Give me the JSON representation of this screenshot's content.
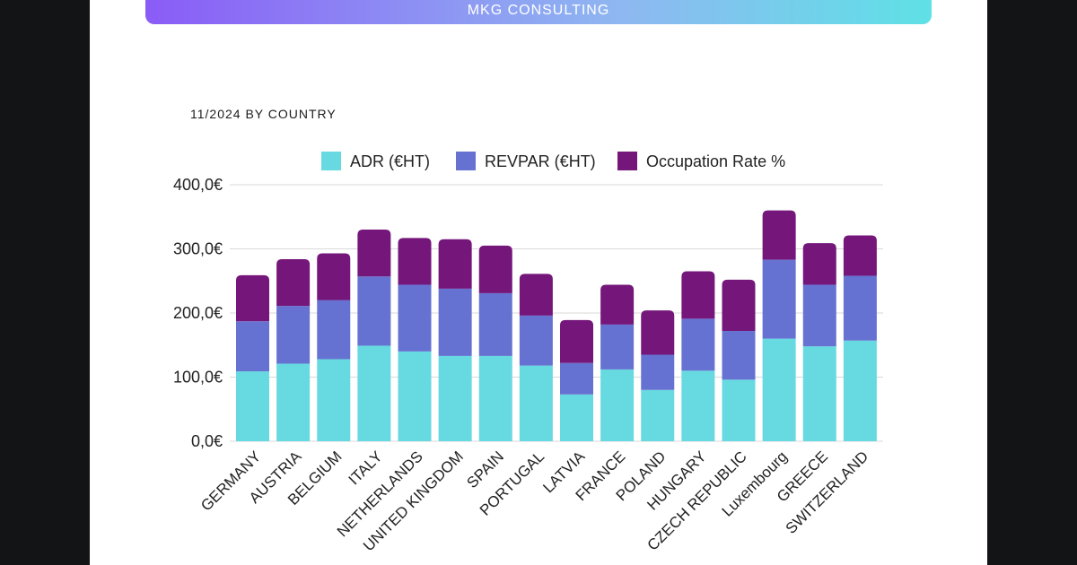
{
  "header": {
    "brand": "MKG CONSULTING"
  },
  "subtitle": "11/2024 BY COUNTRY",
  "colors": {
    "adr": "#67d9e0",
    "revpar": "#6672d1",
    "occupation": "#74167a",
    "grid": "#d9d9d9"
  },
  "chart_data": {
    "type": "bar",
    "stacked": true,
    "categories": [
      "GERMANY",
      "AUSTRIA",
      "BELGIUM",
      "ITALY",
      "NETHERLANDS",
      "UNITED KINGDOM",
      "SPAIN",
      "PORTUGAL",
      "LATVIA",
      "FRANCE",
      "POLAND",
      "HUNGARY",
      "CZECH REPUBLIC",
      "Luxembourg",
      "GREECE",
      "SWITZERLAND"
    ],
    "series": [
      {
        "name": "ADR (€HT)",
        "values": [
          109,
          121,
          128,
          149,
          140,
          133,
          133,
          118,
          73,
          112,
          80,
          110,
          96,
          160,
          148,
          157
        ]
      },
      {
        "name": "REVPAR (€HT)",
        "values": [
          78,
          90,
          92,
          108,
          104,
          105,
          98,
          78,
          49,
          70,
          55,
          81,
          76,
          123,
          96,
          101
        ]
      },
      {
        "name": "Occupation Rate %",
        "values": [
          72,
          73,
          73,
          73,
          73,
          77,
          74,
          65,
          67,
          62,
          69,
          74,
          80,
          77,
          65,
          63
        ]
      }
    ],
    "yticks": [
      "0,0€",
      "100,0€",
      "200,0€",
      "300,0€",
      "400,0€"
    ],
    "ylim": [
      0,
      400
    ],
    "grid": true,
    "legend": "top"
  }
}
